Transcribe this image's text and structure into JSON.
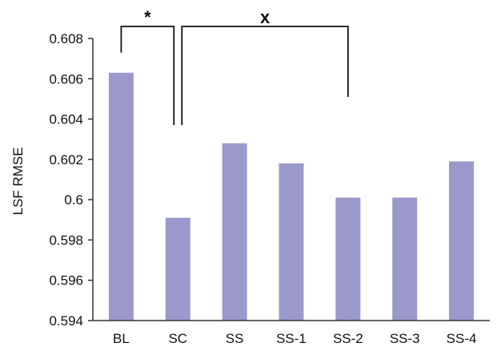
{
  "chart_data": {
    "type": "bar",
    "title": "",
    "xlabel": "",
    "ylabel": "LSF RMSE",
    "ylim": [
      0.594,
      0.608
    ],
    "yticks": [
      "0.594",
      "0.596",
      "0.598",
      "0.6",
      "0.602",
      "0.604",
      "0.606",
      "0.608"
    ],
    "ytick_values": [
      0.594,
      0.596,
      0.598,
      0.6,
      0.602,
      0.604,
      0.606,
      0.608
    ],
    "categories": [
      "BL",
      "SC",
      "SS",
      "SS-1",
      "SS-2",
      "SS-3",
      "SS-4"
    ],
    "values": [
      0.6063,
      0.5991,
      0.6028,
      0.6018,
      0.6001,
      0.6001,
      0.6019
    ],
    "bar_color": "#9b99cc",
    "grid": false,
    "annotations": [
      {
        "label": "*",
        "from_category": "BL",
        "to_category": "SC",
        "left_drop_to": 0.6073,
        "right_drop_to": 0.6037
      },
      {
        "label": "x",
        "from_category": "SC",
        "to_category": "SS-2",
        "left_drop_to": 0.6037,
        "right_drop_to": 0.6051
      }
    ]
  }
}
